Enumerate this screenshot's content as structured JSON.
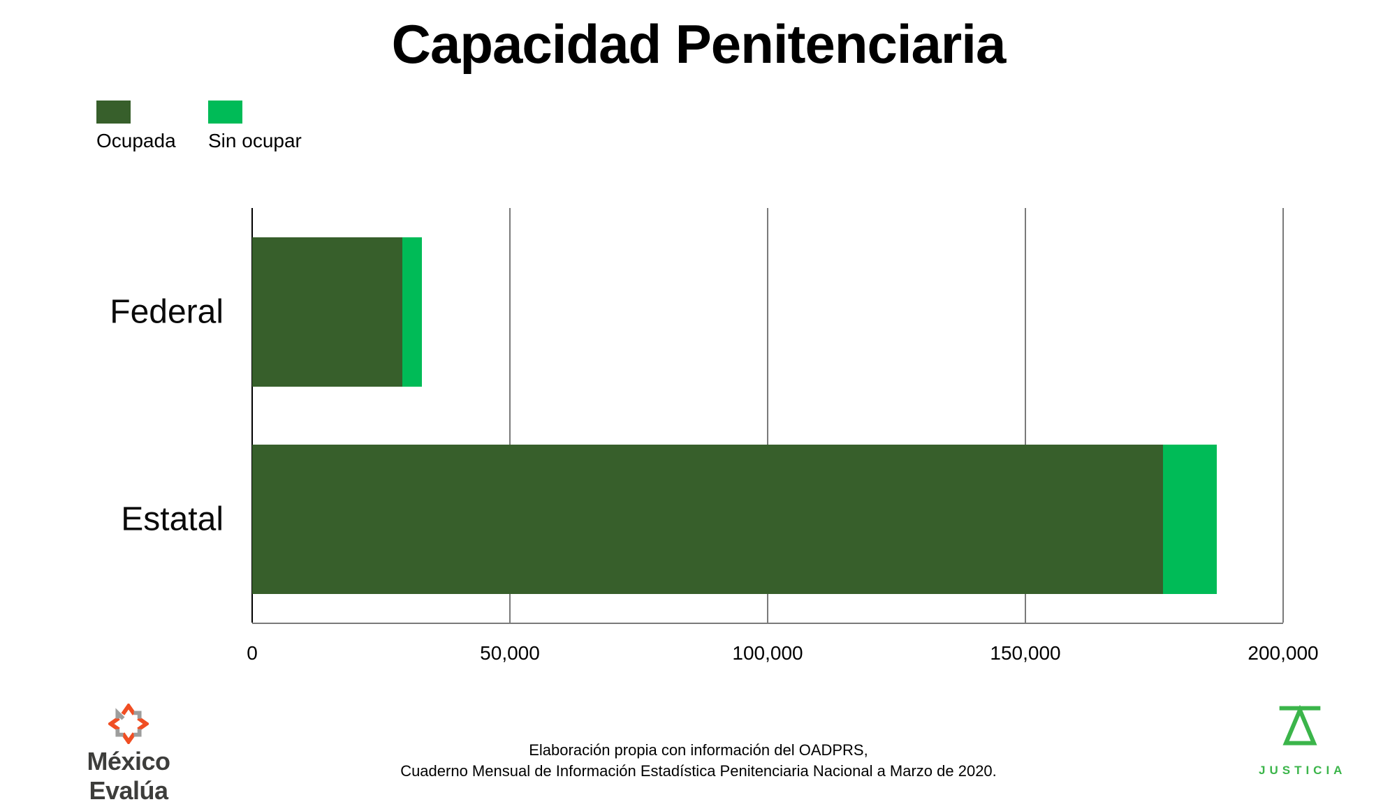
{
  "title": "Capacidad Penitenciaria",
  "legend": {
    "items": [
      {
        "label": "Ocupada",
        "color": "#375F2B"
      },
      {
        "label": "Sin ocupar",
        "color": "#00BB57"
      }
    ]
  },
  "chart_data": {
    "type": "bar",
    "orientation": "horizontal",
    "stacked": true,
    "title": "Capacidad Penitenciaria",
    "categories": [
      "Federal",
      "Estatal"
    ],
    "series": [
      {
        "name": "Ocupada",
        "color": "#375F2B",
        "values": [
          29100,
          176700
        ]
      },
      {
        "name": "Sin ocupar",
        "color": "#00BB57",
        "values": [
          3800,
          10400
        ]
      }
    ],
    "totals": [
      32900,
      187100
    ],
    "xlim": [
      0,
      200000
    ],
    "xticks": [
      0,
      50000,
      100000,
      150000,
      200000
    ],
    "xtick_labels": [
      "0",
      "50,000",
      "100,000",
      "150,000",
      "200,000"
    ],
    "grid": "vertical-gridlines",
    "legend_position": "top-left"
  },
  "footer": {
    "source_line1": "Elaboración propia con información del OADPRS,",
    "source_line2": "Cuaderno Mensual de Información Estadística Penitenciaria Nacional a Marzo de 2020.",
    "left_logo": {
      "text": "México Evalúa"
    },
    "right_logo": {
      "text": "JUSTICIA"
    }
  },
  "colors": {
    "ocupada": "#375F2B",
    "sin_ocupar": "#00BB57",
    "grid": "#7A7A7A",
    "axis": "#000000",
    "logo_orange": "#F04E23",
    "logo_gray": "#9D9D9C",
    "justicia_green": "#3BB54A",
    "wordmark_gray": "#3D3D3B"
  }
}
